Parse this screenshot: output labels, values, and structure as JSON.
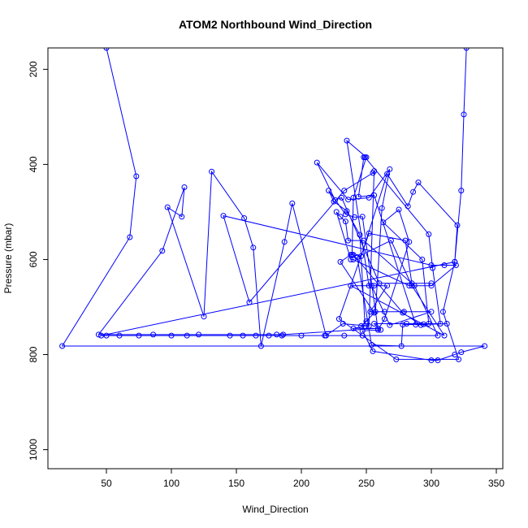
{
  "chart_data": {
    "type": "line",
    "title": "ATOM2 Northbound Wind_Direction",
    "xlabel": "Wind_Direction",
    "ylabel": "Pressure (mbar)",
    "xlim": [
      5,
      355
    ],
    "ylim": [
      1040,
      155
    ],
    "y_inverted": true,
    "x_ticks": [
      "50",
      "100",
      "150",
      "200",
      "250",
      "300",
      "350"
    ],
    "y_ticks": [
      "200",
      "400",
      "600",
      "800",
      "1000"
    ],
    "grid": false,
    "legend": "none",
    "series_color": "#0000ff",
    "series": [
      {
        "values": [
          [
            50,
            155
          ],
          [
            73,
            425
          ],
          [
            68,
            553
          ],
          [
            16,
            782
          ],
          [
            341,
            782
          ],
          [
            323,
            795
          ],
          [
            318,
            800
          ],
          [
            305,
            812
          ],
          [
            300,
            812
          ],
          [
            255,
            793
          ],
          [
            247,
            750
          ],
          [
            261,
            748
          ],
          [
            256,
            735
          ],
          [
            281,
            735
          ],
          [
            307,
            735
          ],
          [
            301,
            618
          ],
          [
            298,
            547
          ],
          [
            249,
            385
          ],
          [
            248,
            385
          ],
          [
            244,
            468
          ],
          [
            256,
            465
          ],
          [
            288,
            737
          ],
          [
            312,
            735
          ],
          [
            294,
            736
          ],
          [
            278,
            737
          ],
          [
            277,
            782
          ],
          [
            254,
            780
          ],
          [
            243,
            595
          ],
          [
            269,
            560
          ],
          [
            285,
            655
          ],
          [
            310,
            760
          ],
          [
            238,
            655
          ],
          [
            254,
            655
          ],
          [
            268,
            738
          ],
          [
            300,
            710
          ],
          [
            279,
            710
          ],
          [
            264,
            710
          ],
          [
            253,
            710
          ],
          [
            266,
            655
          ],
          [
            256,
            655
          ],
          [
            252,
            655
          ],
          [
            235,
            350
          ],
          [
            250,
            385
          ],
          [
            240,
            470
          ],
          [
            239,
            590
          ],
          [
            246,
            593
          ],
          [
            266,
            420
          ],
          [
            282,
            488
          ],
          [
            286,
            458
          ],
          [
            290,
            438
          ],
          [
            320,
            528
          ],
          [
            318,
            605
          ],
          [
            309,
            710
          ],
          [
            321,
            810
          ],
          [
            273,
            810
          ],
          [
            229,
            725
          ],
          [
            252,
            545
          ],
          [
            280,
            560
          ],
          [
            285,
            650
          ],
          [
            300,
            650
          ],
          [
            260,
            650
          ],
          [
            231,
            470
          ],
          [
            226,
            475
          ],
          [
            212,
            396
          ],
          [
            236,
            474
          ],
          [
            252,
            470
          ],
          [
            268,
            410
          ],
          [
            262,
            492
          ],
          [
            257,
            710
          ],
          [
            246,
            740
          ],
          [
            250,
            730
          ],
          [
            256,
            712
          ],
          [
            230,
            605
          ],
          [
            238,
            590
          ],
          [
            240,
            590
          ],
          [
            278,
            712
          ],
          [
            292,
            738
          ],
          [
            298,
            735
          ],
          [
            293,
            600
          ],
          [
            263,
            522
          ],
          [
            275,
            495
          ],
          [
            283,
            563
          ],
          [
            264,
            725
          ],
          [
            259,
            748
          ],
          [
            247,
            510
          ],
          [
            241,
            511
          ],
          [
            234,
            505
          ],
          [
            221,
            455
          ],
          [
            225,
            478
          ],
          [
            235,
            498
          ],
          [
            245,
            548
          ],
          [
            249,
            740
          ],
          [
            240,
            745
          ],
          [
            259,
            745
          ],
          [
            186,
            758
          ],
          [
            181,
            758
          ],
          [
            121,
            758
          ],
          [
            86,
            758
          ],
          [
            44,
            758
          ],
          [
            93,
            582
          ],
          [
            110,
            448
          ],
          [
            108,
            510
          ],
          [
            97,
            490
          ],
          [
            125,
            720
          ],
          [
            131,
            415
          ],
          [
            156,
            513
          ],
          [
            163,
            575
          ],
          [
            169,
            782
          ],
          [
            187,
            563
          ],
          [
            193,
            482
          ],
          [
            219,
            760
          ],
          [
            232,
            735
          ],
          [
            252,
            740
          ],
          [
            256,
            414
          ],
          [
            255,
            418
          ],
          [
            233,
            455
          ],
          [
            160,
            690
          ],
          [
            140,
            508
          ],
          [
            300,
            612
          ],
          [
            310,
            612
          ],
          [
            319,
            612
          ],
          [
            300,
            655
          ],
          [
            283,
            655
          ],
          [
            240,
            600
          ],
          [
            238,
            600
          ],
          [
            227,
            500
          ],
          [
            230,
            510
          ],
          [
            234,
            520
          ],
          [
            236,
            560
          ],
          [
            248,
            560
          ],
          [
            287,
            655
          ],
          [
            305,
            760
          ],
          [
            247,
            760
          ],
          [
            233,
            760
          ],
          [
            218,
            760
          ],
          [
            200,
            760
          ],
          [
            185,
            760
          ],
          [
            175,
            760
          ],
          [
            165,
            760
          ],
          [
            155,
            760
          ],
          [
            145,
            760
          ],
          [
            112,
            760
          ],
          [
            100,
            760
          ],
          [
            75,
            760
          ],
          [
            60,
            760
          ],
          [
            50,
            760
          ],
          [
            46,
            760
          ],
          [
            318,
            605
          ],
          [
            323,
            455
          ],
          [
            325,
            295
          ],
          [
            327,
            155
          ]
        ]
      }
    ]
  }
}
